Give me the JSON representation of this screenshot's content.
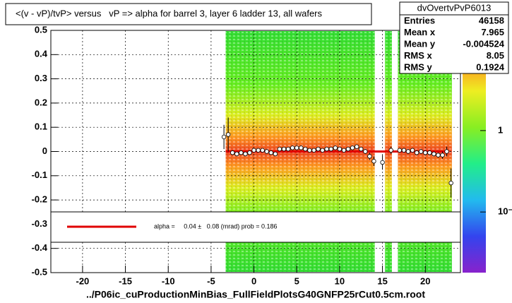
{
  "chart_data": {
    "type": "profile2d",
    "title": "<(v - vP)/tvP> versus   vP => alpha for barrel 3, layer 6 ladder 13, all wafers",
    "x_label": "../P06ic_cuProductionMinBias_FullFieldPlotsG40GNFP25rCut0.5cm.root",
    "xlim": [
      -23.7,
      24.1
    ],
    "xticks": [
      -20,
      -15,
      -10,
      -5,
      0,
      5,
      10,
      15,
      20
    ],
    "ylim": [
      -0.5,
      0.5
    ],
    "yticks": [
      -0.5,
      -0.4,
      -0.3,
      -0.2,
      -0.1,
      0,
      0.1,
      0.2,
      0.3,
      0.4,
      0.5
    ],
    "grid": true,
    "heatmap_columns": [
      [
        -3.3,
        14.1
      ],
      [
        15.3,
        16.1
      ],
      [
        16.8,
        23.1
      ]
    ],
    "zlim": [
      0.018,
      17
    ],
    "zlog": true,
    "zticks": [
      1,
      {
        "value": 0.1,
        "label": "10⁻¹"
      }
    ],
    "stats": {
      "name": "dvOvertvPvP6013",
      "rows": [
        [
          "Entries",
          "46158"
        ],
        [
          "Mean x",
          "7.965"
        ],
        [
          "Mean y",
          "-0.004524"
        ],
        [
          "RMS x",
          "8.05"
        ],
        [
          "RMS y",
          "0.1924"
        ]
      ]
    },
    "profile": {
      "x": [
        -3.5,
        -3.0,
        -2.5,
        -2,
        -1.5,
        -1,
        -0.5,
        0,
        0.5,
        1,
        1.5,
        2,
        2.5,
        3,
        3.5,
        4,
        4.5,
        5,
        5.5,
        6,
        6.5,
        7,
        7.5,
        8,
        8.5,
        9,
        9.5,
        10,
        10.5,
        11,
        11.5,
        12,
        12.5,
        13,
        13.5,
        14,
        15,
        16,
        17,
        17.5,
        18,
        18.5,
        19,
        19.5,
        20,
        20.5,
        21,
        21.5,
        22,
        22.5,
        23
      ],
      "values": [
        0.06,
        0.07,
        -0.005,
        -0.01,
        -0.005,
        -0.01,
        -0.005,
        0.005,
        0.005,
        0.005,
        0,
        -0.005,
        -0.01,
        0.01,
        0.01,
        0.01,
        0.015,
        0.015,
        0.015,
        0.01,
        0.005,
        0.005,
        0.01,
        0.005,
        0.01,
        0.01,
        0.015,
        0.01,
        0.005,
        0.01,
        0.015,
        0.02,
        0.01,
        0,
        -0.02,
        -0.04,
        -0.045,
        0.005,
        0.005,
        0.005,
        0,
        0.005,
        -0.005,
        0,
        -0.005,
        -0.005,
        -0.01,
        -0.015,
        -0.015,
        0,
        -0.13
      ],
      "errors": [
        0.05,
        0.07,
        0.01,
        0.008,
        0.008,
        0.008,
        0.008,
        0.008,
        0.008,
        0.008,
        0.008,
        0.008,
        0.008,
        0.008,
        0.008,
        0.008,
        0.008,
        0.008,
        0.008,
        0.008,
        0.008,
        0.008,
        0.008,
        0.008,
        0.008,
        0.008,
        0.008,
        0.008,
        0.008,
        0.008,
        0.008,
        0.008,
        0.008,
        0.01,
        0.015,
        0.02,
        0.03,
        0.015,
        0.01,
        0.01,
        0.01,
        0.01,
        0.01,
        0.01,
        0.01,
        0.01,
        0.01,
        0.01,
        0.015,
        0.02,
        0.06
      ]
    },
    "fit": {
      "color": "#e00000",
      "x": [
        -3.3,
        22.7
      ],
      "values": [
        0,
        0
      ]
    },
    "fit_legend": "alpha =     0.04 ±   0.08 (mrad) prob = 0.186"
  }
}
